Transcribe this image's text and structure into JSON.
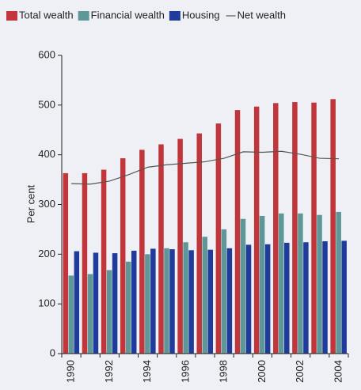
{
  "chart_data": {
    "type": "bar",
    "y_label": "Per cent",
    "categories": [
      "1990",
      null,
      "1992",
      null,
      "1994",
      null,
      "1996",
      null,
      "1998",
      null,
      "2000",
      null,
      "2002",
      null,
      "2004"
    ],
    "series": [
      {
        "name": "Total wealth",
        "color": "#c0363b",
        "values": [
          363,
          363,
          370,
          393,
          410,
          421,
          432,
          443,
          463,
          490,
          497,
          504,
          506,
          505,
          512
        ]
      },
      {
        "name": "Financial wealth",
        "color": "#5e9797",
        "values": [
          157,
          160,
          168,
          185,
          200,
          212,
          224,
          235,
          250,
          271,
          277,
          282,
          282,
          279,
          285
        ]
      },
      {
        "name": "Housing",
        "color": "#1f3c9c",
        "values": [
          206,
          203,
          202,
          207,
          211,
          210,
          208,
          209,
          212,
          219,
          220,
          223,
          224,
          226,
          227
        ]
      },
      {
        "name": "Net wealth",
        "color": "#555555",
        "type": "line",
        "values": [
          342,
          341,
          347,
          360,
          375,
          380,
          383,
          386,
          393,
          406,
          405,
          407,
          401,
          393,
          392
        ]
      }
    ],
    "ylim": [
      0,
      600
    ],
    "yticks": [
      0,
      100,
      200,
      300,
      400,
      500,
      600
    ]
  }
}
